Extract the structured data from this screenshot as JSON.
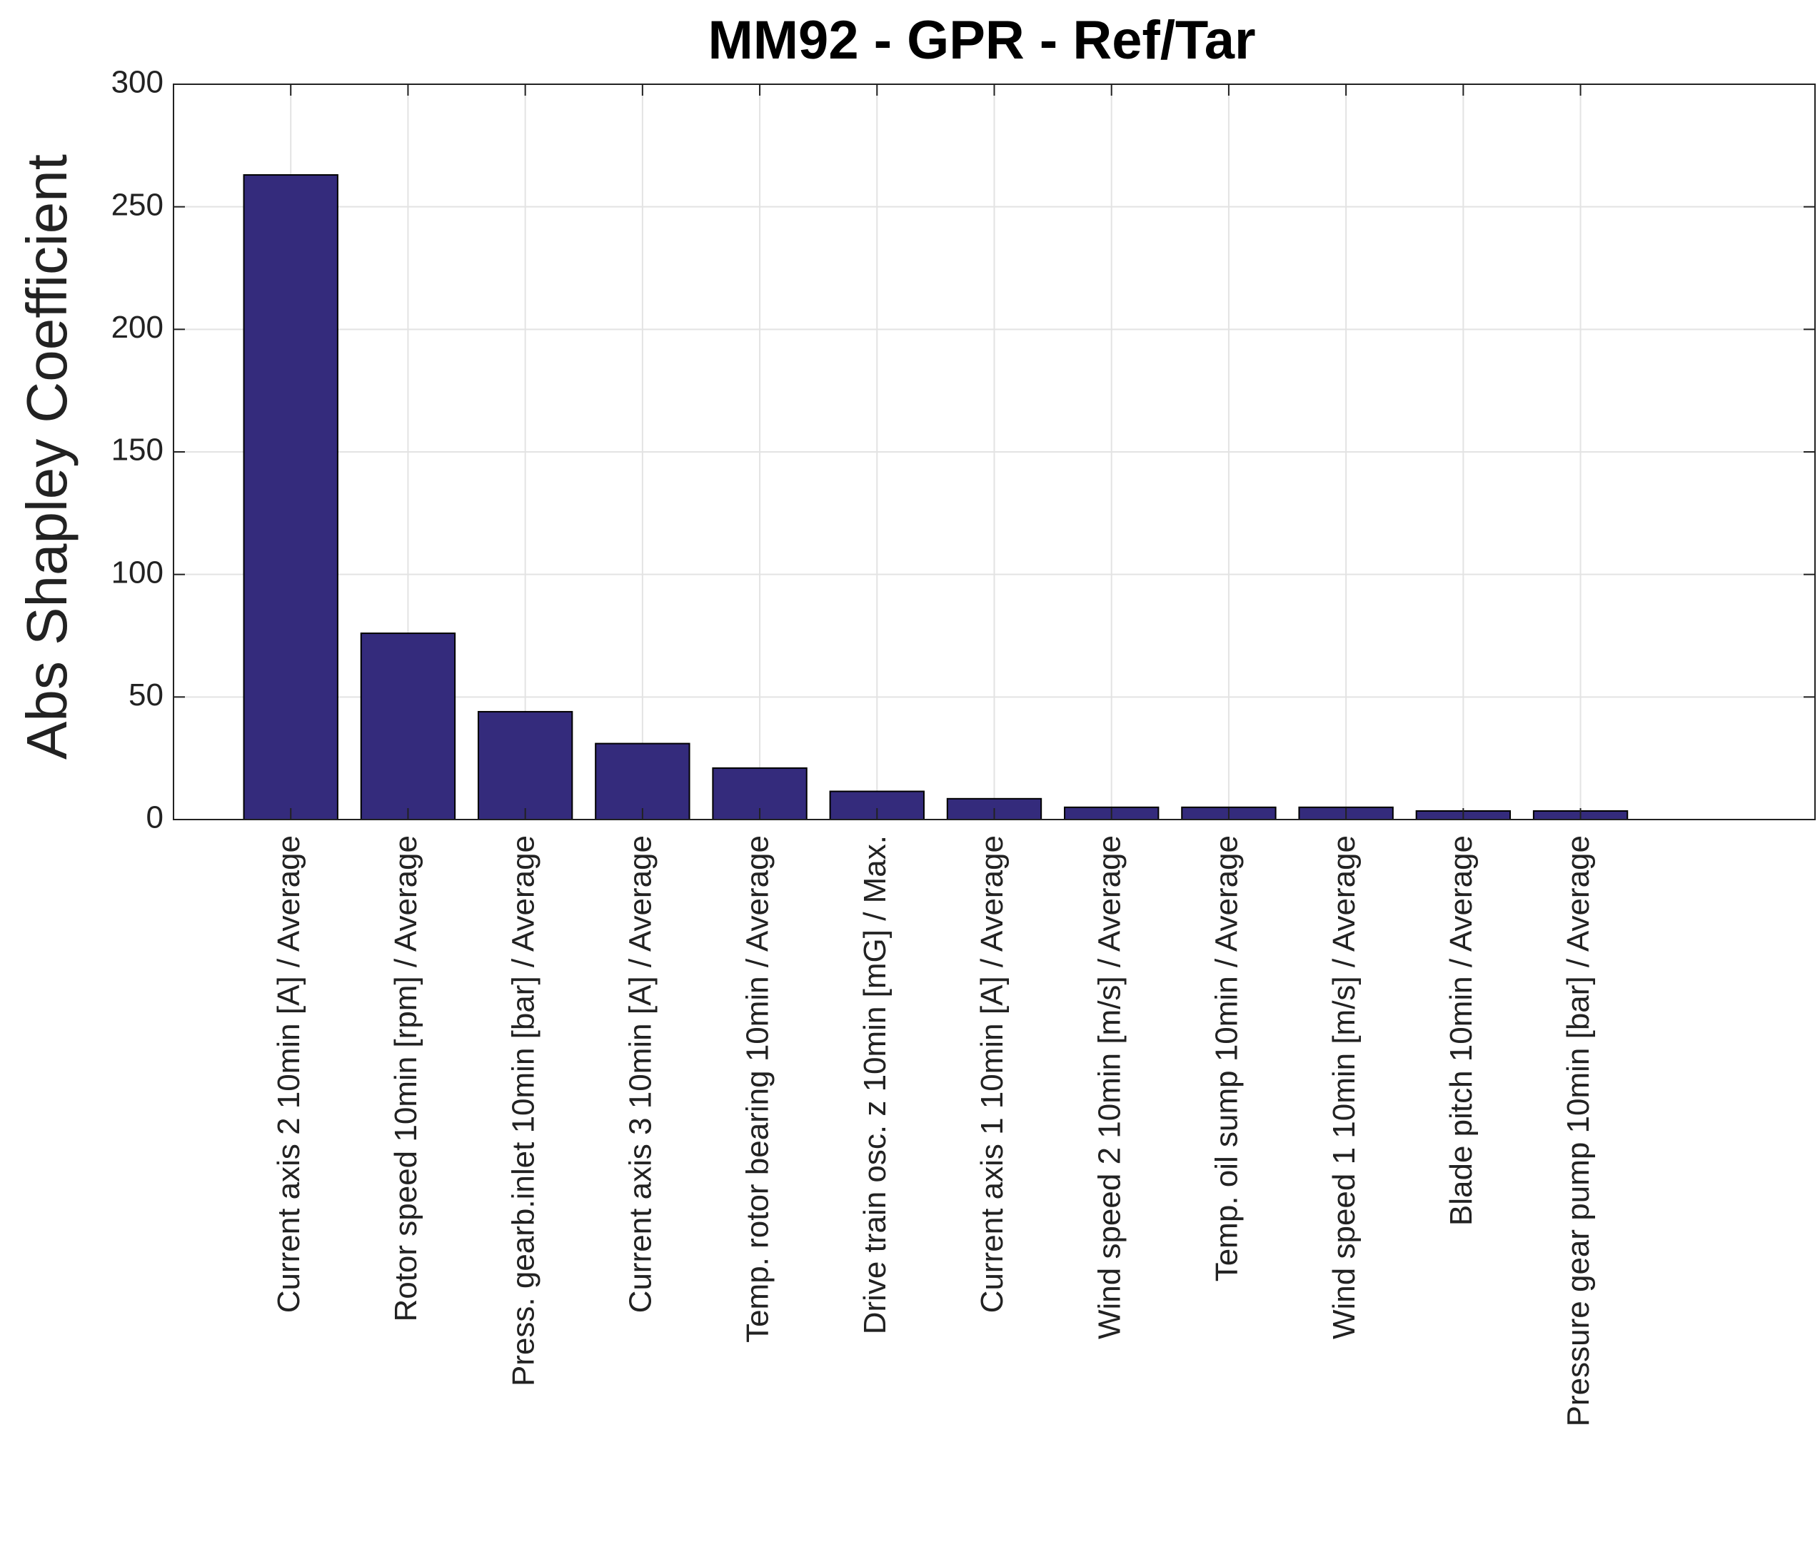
{
  "chart_data": {
    "type": "bar",
    "title": "MM92 - GPR - Ref/Tar",
    "y_label": "Abs Shapley Coefficient",
    "categories": [
      "Current axis 2 10min [A] / Average",
      "Rotor speed 10min [rpm] / Average",
      "Press. gearb.inlet 10min [bar] / Average",
      "Current axis 3 10min [A] / Average",
      "Temp. rotor bearing 10min  / Average",
      "Drive train osc. z 10min [mG] / Max.",
      "Current axis 1 10min [A] / Average",
      "Wind speed 2 10min [m/s] / Average",
      "Temp. oil sump 10min  / Average",
      "Wind speed 1 10min [m/s] / Average",
      "Blade pitch 10min  / Average",
      "Pressure gear pump 10min [bar] / Average"
    ],
    "values": [
      263,
      76,
      44,
      31,
      21,
      11.5,
      8.5,
      5,
      5,
      5,
      3.5,
      3.5
    ],
    "color": "#342b7c",
    "ylim": [
      0,
      300
    ],
    "yticks": [
      0,
      50,
      100,
      150,
      200,
      250,
      300
    ],
    "grid": true
  }
}
